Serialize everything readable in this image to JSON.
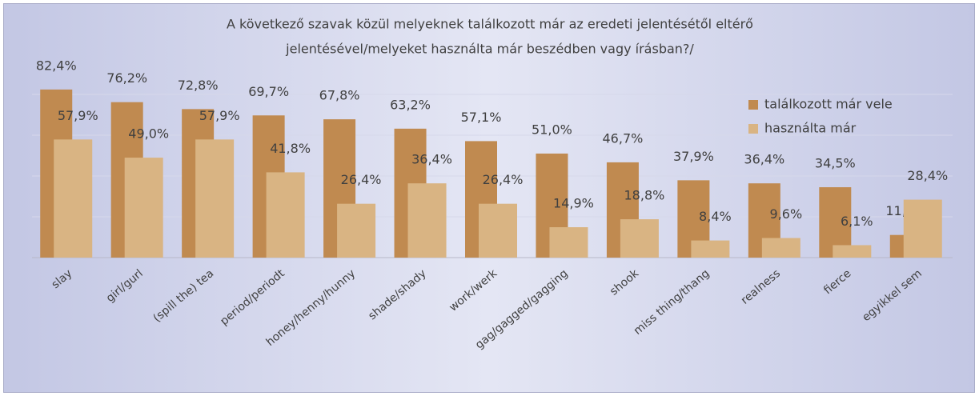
{
  "chart_data": {
    "type": "bar",
    "title": [
      "A következő szavak közül melyeknek találkozott már az eredeti jelentésétől eltérő",
      "jelentésével/melyeket használta már beszédben vagy írásban?/"
    ],
    "categories": [
      "slay",
      "girl/gurl",
      "(spill the) tea",
      "period/periodt",
      "honey/henny/hunny",
      "shade/shady",
      "work/werk",
      "gag/gagged/gagging",
      "shook",
      "miss thing/thang",
      "realness",
      "fierce",
      "egyikkel sem"
    ],
    "series": [
      {
        "name": "találkozott már vele",
        "color": "#c08a50",
        "values": [
          82.4,
          76.2,
          72.8,
          69.7,
          67.8,
          63.2,
          57.1,
          51.0,
          46.7,
          37.9,
          36.4,
          34.5,
          11.1
        ],
        "value_labels": [
          "82,4%",
          "76,2%",
          "72,8%",
          "69,7%",
          "67,8%",
          "63,2%",
          "57,1%",
          "51,0%",
          "46,7%",
          "37,9%",
          "36,4%",
          "34,5%",
          "11,1%"
        ]
      },
      {
        "name": "használta már",
        "color": "#d9b483",
        "values": [
          57.9,
          49.0,
          57.9,
          41.8,
          26.4,
          36.4,
          26.4,
          14.9,
          18.8,
          8.4,
          9.6,
          6.1,
          28.4
        ],
        "value_labels": [
          "57,9%",
          "49,0%",
          "57,9%",
          "41,8%",
          "26,4%",
          "36,4%",
          "26,4%",
          "14,9%",
          "18,8%",
          "8,4%",
          "9,6%",
          "6,1%",
          "28,4%"
        ]
      }
    ],
    "ylim": [
      0,
      100
    ],
    "yticks": [
      0,
      20,
      40,
      60,
      80
    ],
    "grid": true,
    "legend": "top-right"
  }
}
